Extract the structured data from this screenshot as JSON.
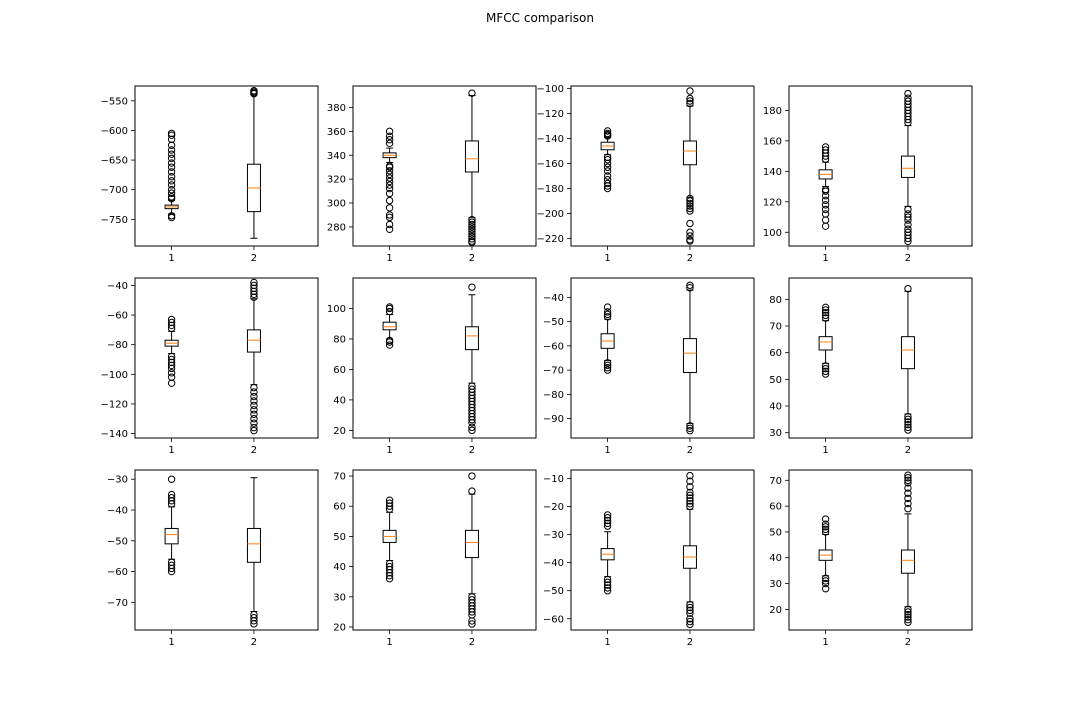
{
  "figure": {
    "title": "MFCC comparison"
  },
  "colors": {
    "median": "#ff7f0e",
    "box": "#000000",
    "background": "#ffffff"
  },
  "chart_data": [
    {
      "type": "box",
      "title": "",
      "xlabel": "",
      "ylabel": "",
      "categories": [
        "1",
        "2"
      ],
      "ylim": [
        -795,
        -525
      ],
      "yticks": [
        -550,
        -600,
        -650,
        -700,
        -750
      ],
      "series": [
        {
          "q1": -732,
          "median": -729,
          "q3": -726,
          "whisker_low": -741,
          "whisker_high": -718,
          "fliers": [
            -605,
            -608,
            -615,
            -625,
            -633,
            -640,
            -647,
            -655,
            -662,
            -670,
            -678,
            -685,
            -692,
            -700,
            -706,
            -712,
            -715,
            -744,
            -747
          ]
        },
        {
          "q1": -737,
          "median": -697,
          "q3": -657,
          "whisker_low": -782,
          "whisker_high": -540,
          "fliers": [
            -533,
            -535,
            -537,
            -538
          ]
        }
      ]
    },
    {
      "type": "box",
      "title": "",
      "xlabel": "",
      "ylabel": "",
      "categories": [
        "1",
        "2"
      ],
      "ylim": [
        264,
        398
      ],
      "yticks": [
        280,
        300,
        320,
        340,
        360,
        380
      ],
      "series": [
        {
          "q1": 338,
          "median": 340,
          "q3": 342,
          "whisker_low": 334,
          "whisker_high": 346,
          "fliers": [
            278,
            282,
            288,
            290,
            296,
            302,
            308,
            312,
            315,
            318,
            321,
            324,
            327,
            330,
            331,
            350,
            353,
            356,
            360
          ]
        },
        {
          "q1": 326,
          "median": 337,
          "q3": 352,
          "whisker_low": 288,
          "whisker_high": 390,
          "fliers": [
            392,
            286,
            284,
            282,
            280,
            278,
            276,
            274,
            272,
            270,
            268,
            267
          ]
        }
      ]
    },
    {
      "type": "box",
      "title": "",
      "xlabel": "",
      "ylabel": "",
      "categories": [
        "1",
        "2"
      ],
      "ylim": [
        -226,
        -98
      ],
      "yticks": [
        -100,
        -120,
        -140,
        -160,
        -180,
        -200,
        -220
      ],
      "series": [
        {
          "q1": -149,
          "median": -146,
          "q3": -143,
          "whisker_low": -153,
          "whisker_high": -139,
          "fliers": [
            -134,
            -136,
            -137,
            -138,
            -155,
            -157,
            -160,
            -163,
            -166,
            -170,
            -173,
            -176,
            -178,
            -180
          ]
        },
        {
          "q1": -161,
          "median": -150,
          "q3": -142,
          "whisker_low": -187,
          "whisker_high": -114,
          "fliers": [
            -102,
            -108,
            -110,
            -112,
            -188,
            -190,
            -192,
            -194,
            -196,
            -198,
            -208,
            -215,
            -218,
            -221,
            -222
          ]
        }
      ]
    },
    {
      "type": "box",
      "title": "",
      "xlabel": "",
      "ylabel": "",
      "categories": [
        "1",
        "2"
      ],
      "ylim": [
        91,
        196
      ],
      "yticks": [
        100,
        120,
        140,
        160,
        180
      ],
      "series": [
        {
          "q1": 135,
          "median": 138,
          "q3": 141,
          "whisker_low": 130,
          "whisker_high": 146,
          "fliers": [
            104,
            108,
            112,
            115,
            118,
            121,
            124,
            127,
            128,
            148,
            150,
            152,
            154,
            156
          ]
        },
        {
          "q1": 136,
          "median": 142,
          "q3": 150,
          "whisker_low": 117,
          "whisker_high": 170,
          "fliers": [
            191,
            188,
            186,
            184,
            182,
            180,
            178,
            176,
            174,
            172,
            115,
            112,
            110,
            108,
            105,
            102,
            100,
            98,
            96,
            94
          ]
        }
      ]
    },
    {
      "type": "box",
      "title": "",
      "xlabel": "",
      "ylabel": "",
      "categories": [
        "1",
        "2"
      ],
      "ylim": [
        -143,
        -35
      ],
      "yticks": [
        -40,
        -60,
        -80,
        -100,
        -120,
        -140
      ],
      "series": [
        {
          "q1": -81,
          "median": -79,
          "q3": -77,
          "whisker_low": -86,
          "whisker_high": -71,
          "fliers": [
            -63,
            -65,
            -67,
            -69,
            -88,
            -90,
            -92,
            -94,
            -96,
            -99,
            -102,
            -106
          ]
        },
        {
          "q1": -85,
          "median": -77,
          "q3": -70,
          "whisker_low": -107,
          "whisker_high": -49,
          "fliers": [
            -38,
            -40,
            -42,
            -44,
            -46,
            -48,
            -109,
            -112,
            -115,
            -118,
            -121,
            -124,
            -127,
            -130,
            -133,
            -136,
            -138
          ]
        }
      ]
    },
    {
      "type": "box",
      "title": "",
      "xlabel": "",
      "ylabel": "",
      "categories": [
        "1",
        "2"
      ],
      "ylim": [
        15,
        120
      ],
      "yticks": [
        20,
        40,
        60,
        80,
        100
      ],
      "series": [
        {
          "q1": 86,
          "median": 88,
          "q3": 91,
          "whisker_low": 80,
          "whisker_high": 96,
          "fliers": [
            76,
            78,
            79,
            98,
            100,
            101
          ]
        },
        {
          "q1": 73,
          "median": 82,
          "q3": 88,
          "whisker_low": 51,
          "whisker_high": 109,
          "fliers": [
            114,
            49,
            47,
            45,
            43,
            41,
            39,
            37,
            35,
            33,
            31,
            29,
            27,
            25,
            22,
            20
          ]
        }
      ]
    },
    {
      "type": "box",
      "title": "",
      "xlabel": "",
      "ylabel": "",
      "categories": [
        "1",
        "2"
      ],
      "ylim": [
        -98,
        -32
      ],
      "yticks": [
        -40,
        -50,
        -60,
        -70,
        -80,
        -90
      ],
      "series": [
        {
          "q1": -61,
          "median": -58,
          "q3": -55,
          "whisker_low": -66,
          "whisker_high": -49,
          "fliers": [
            -44,
            -46,
            -47,
            -48,
            -67,
            -68,
            -69,
            -70
          ]
        },
        {
          "q1": -71,
          "median": -63,
          "q3": -57,
          "whisker_low": -92,
          "whisker_high": -37,
          "fliers": [
            -35,
            -36,
            -93,
            -94,
            -95
          ]
        }
      ]
    },
    {
      "type": "box",
      "title": "",
      "xlabel": "",
      "ylabel": "",
      "categories": [
        "1",
        "2"
      ],
      "ylim": [
        28,
        88
      ],
      "yticks": [
        30,
        40,
        50,
        60,
        70,
        80
      ],
      "series": [
        {
          "q1": 61,
          "median": 64,
          "q3": 66,
          "whisker_low": 56,
          "whisker_high": 72,
          "fliers": [
            52,
            53,
            54,
            55,
            73,
            74,
            75,
            76,
            77
          ]
        },
        {
          "q1": 54,
          "median": 61,
          "q3": 66,
          "whisker_low": 37,
          "whisker_high": 83,
          "fliers": [
            84,
            36,
            35,
            34,
            33,
            32,
            31
          ]
        }
      ]
    },
    {
      "type": "box",
      "title": "",
      "xlabel": "",
      "ylabel": "",
      "categories": [
        "1",
        "2"
      ],
      "ylim": [
        -79,
        -27
      ],
      "yticks": [
        -30,
        -40,
        -50,
        -60,
        -70
      ],
      "series": [
        {
          "q1": -51,
          "median": -48,
          "q3": -46,
          "whisker_low": -56,
          "whisker_high": -39,
          "fliers": [
            -30,
            -35,
            -36,
            -37,
            -38,
            -57,
            -58,
            -59,
            -60
          ]
        },
        {
          "q1": -57,
          "median": -51,
          "q3": -46,
          "whisker_low": -73,
          "whisker_high": -29.5,
          "fliers": [
            -74,
            -75,
            -76,
            -77
          ]
        }
      ]
    },
    {
      "type": "box",
      "title": "",
      "xlabel": "",
      "ylabel": "",
      "categories": [
        "1",
        "2"
      ],
      "ylim": [
        19,
        72
      ],
      "yticks": [
        20,
        30,
        40,
        50,
        60,
        70
      ],
      "series": [
        {
          "q1": 48,
          "median": 50,
          "q3": 52,
          "whisker_low": 42,
          "whisker_high": 58,
          "fliers": [
            36,
            37,
            38,
            39,
            40,
            41,
            59,
            60,
            61,
            62
          ]
        },
        {
          "q1": 43,
          "median": 48,
          "q3": 52,
          "whisker_low": 31,
          "whisker_high": 64,
          "fliers": [
            65,
            70,
            30,
            29,
            28,
            27,
            26,
            25,
            24,
            22,
            21
          ]
        }
      ]
    },
    {
      "type": "box",
      "title": "",
      "xlabel": "",
      "ylabel": "",
      "categories": [
        "1",
        "2"
      ],
      "ylim": [
        -64,
        -7
      ],
      "yticks": [
        -10,
        -20,
        -30,
        -40,
        -50,
        -60
      ],
      "series": [
        {
          "q1": -39,
          "median": -37,
          "q3": -35,
          "whisker_low": -45,
          "whisker_high": -29,
          "fliers": [
            -23,
            -24,
            -25,
            -26,
            -27,
            -46,
            -47,
            -48,
            -49,
            -50
          ]
        },
        {
          "q1": -42,
          "median": -38,
          "q3": -34,
          "whisker_low": -54,
          "whisker_high": -21,
          "fliers": [
            -9,
            -11,
            -13,
            -15,
            -16,
            -17,
            -18,
            -19,
            -20,
            -55,
            -56,
            -57,
            -58,
            -60,
            -61,
            -62
          ]
        }
      ]
    },
    {
      "type": "box",
      "title": "",
      "xlabel": "",
      "ylabel": "",
      "categories": [
        "1",
        "2"
      ],
      "ylim": [
        12,
        74
      ],
      "yticks": [
        20,
        30,
        40,
        50,
        60,
        70
      ],
      "series": [
        {
          "q1": 39,
          "median": 41,
          "q3": 43,
          "whisker_low": 33,
          "whisker_high": 49,
          "fliers": [
            28,
            30,
            31,
            32,
            50,
            51,
            52,
            53,
            55
          ]
        },
        {
          "q1": 34,
          "median": 39,
          "q3": 43,
          "whisker_low": 21,
          "whisker_high": 57,
          "fliers": [
            59,
            61,
            63,
            65,
            67,
            69,
            70,
            71,
            72,
            20,
            19,
            18,
            17,
            16,
            15
          ]
        }
      ]
    }
  ]
}
